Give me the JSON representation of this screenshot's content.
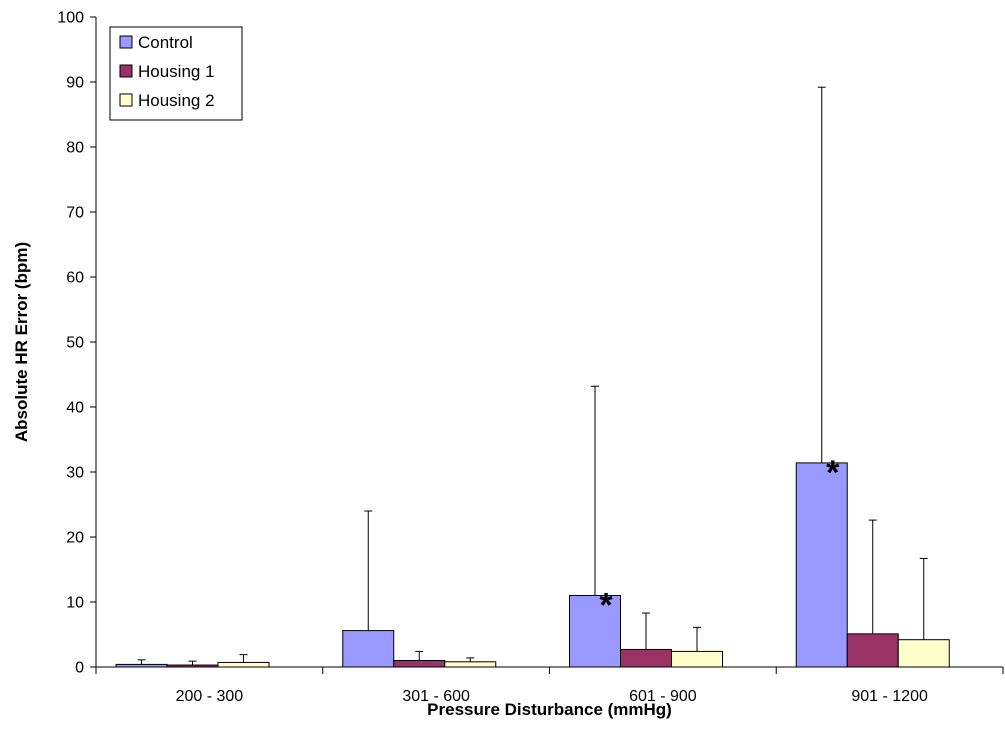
{
  "chart_data": {
    "type": "bar",
    "title": "",
    "xlabel": "Pressure Disturbance (mmHg)",
    "ylabel": "Absolute HR Error (bpm)",
    "ylim": [
      0,
      100
    ],
    "yticks": [
      0,
      10,
      20,
      30,
      40,
      50,
      60,
      70,
      80,
      90,
      100
    ],
    "grid": false,
    "legend_position": "top-left",
    "categories": [
      "200 - 300",
      "301 - 600",
      "601 - 900",
      "901 - 1200"
    ],
    "series": [
      {
        "name": "Control",
        "color": "#9999ff",
        "values": [
          0.4,
          5.6,
          11.0,
          31.4
        ],
        "error_upper": [
          1.1,
          24.0,
          43.2,
          89.2
        ]
      },
      {
        "name": "Housing 1",
        "color": "#993366",
        "values": [
          0.3,
          1.0,
          2.7,
          5.1
        ],
        "error_upper": [
          0.9,
          2.4,
          8.3,
          22.6
        ]
      },
      {
        "name": "Housing 2",
        "color": "#ffffcc",
        "values": [
          0.7,
          0.8,
          2.4,
          4.2
        ],
        "error_upper": [
          1.9,
          1.4,
          6.1,
          16.7
        ]
      }
    ],
    "significance_markers": [
      {
        "category": "601 - 900",
        "series": "Control",
        "symbol": "*"
      },
      {
        "category": "901 - 1200",
        "series": "Control",
        "symbol": "*"
      }
    ]
  }
}
